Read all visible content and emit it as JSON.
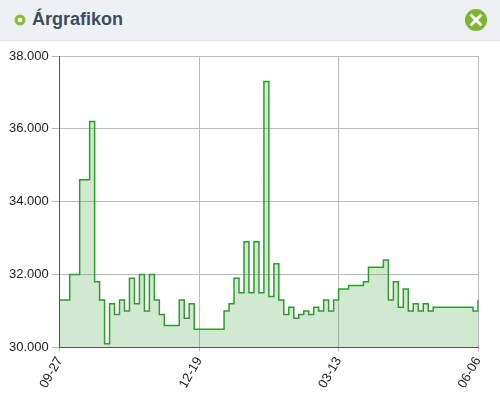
{
  "chart_data": {
    "type": "line",
    "title": "Árgrafikon",
    "categories": [
      "09-27",
      null,
      null,
      null,
      null,
      null,
      null,
      null,
      null,
      null,
      null,
      null,
      null,
      null,
      null,
      null,
      null,
      null,
      null,
      null,
      null,
      null,
      null,
      null,
      null,
      null,
      null,
      null,
      "12-19",
      null,
      null,
      null,
      null,
      null,
      null,
      null,
      null,
      null,
      null,
      null,
      null,
      null,
      null,
      null,
      null,
      null,
      null,
      null,
      null,
      null,
      null,
      null,
      null,
      null,
      null,
      null,
      "03-13",
      null,
      null,
      null,
      null,
      null,
      null,
      null,
      null,
      null,
      null,
      null,
      null,
      null,
      null,
      null,
      null,
      null,
      null,
      null,
      null,
      null,
      null,
      null,
      null,
      null,
      null,
      null,
      "06-06"
    ],
    "values": [
      31300,
      31300,
      32000,
      32000,
      34600,
      34600,
      36200,
      31800,
      31300,
      30100,
      31200,
      30900,
      31300,
      31000,
      31900,
      31200,
      32000,
      31000,
      32000,
      31300,
      30900,
      30600,
      30600,
      30600,
      31300,
      30800,
      31200,
      30500,
      30500,
      30500,
      30500,
      30500,
      30500,
      31000,
      31200,
      31900,
      31500,
      32900,
      31500,
      32900,
      31500,
      37300,
      31400,
      32300,
      31300,
      30900,
      31100,
      30800,
      30900,
      31000,
      30900,
      31100,
      31000,
      31300,
      31000,
      31300,
      31600,
      31600,
      31700,
      31700,
      31700,
      31800,
      32200,
      32200,
      32200,
      32400,
      31300,
      31800,
      31100,
      31600,
      31000,
      31200,
      31000,
      31200,
      31000,
      31100,
      31100,
      31100,
      31100,
      31100,
      31100,
      31100,
      31100,
      31000,
      31300
    ],
    "color": "#2f9a2f",
    "line_style": "steps",
    "ylim": [
      30000,
      38000
    ],
    "yticks": [
      {
        "value": 30000,
        "label": "30.000"
      },
      {
        "value": 32000,
        "label": "32.000"
      },
      {
        "value": 34000,
        "label": "34.000"
      },
      {
        "value": 36000,
        "label": "36.000"
      },
      {
        "value": 38000,
        "label": "38.000"
      }
    ],
    "grid": true
  }
}
